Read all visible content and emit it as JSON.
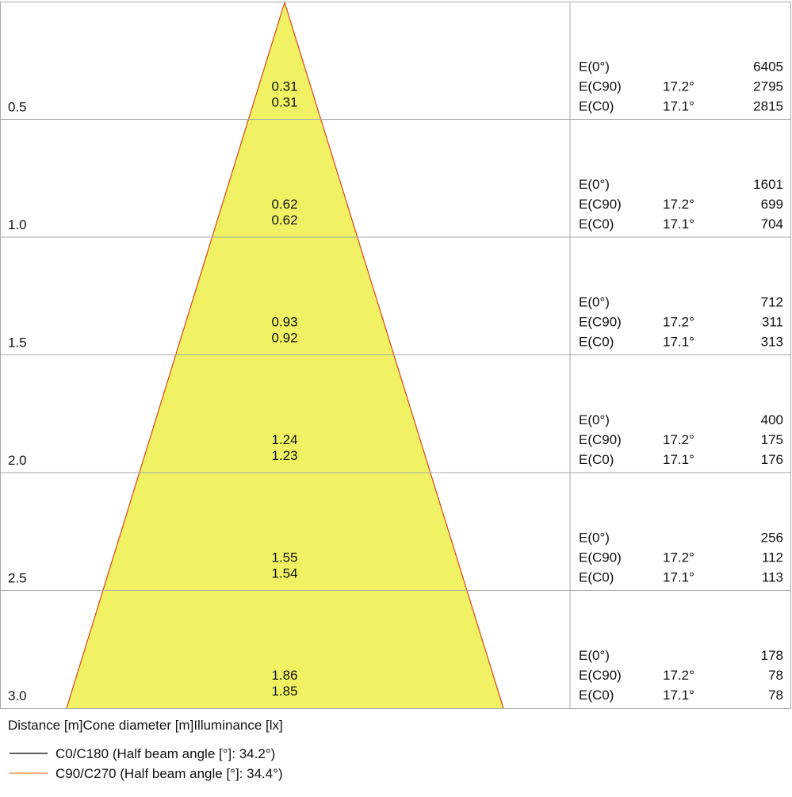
{
  "rows": [
    {
      "distance": "0.5",
      "diameter_c90": "0.31",
      "diameter_c0": "0.31",
      "e0": {
        "label": "E(0°)",
        "value": "6405"
      },
      "e_c90": {
        "label": "E(C90)",
        "angle": "17.2°",
        "value": "2795"
      },
      "e_c0": {
        "label": "E(C0)",
        "angle": "17.1°",
        "value": "2815"
      }
    },
    {
      "distance": "1.0",
      "diameter_c90": "0.62",
      "diameter_c0": "0.62",
      "e0": {
        "label": "E(0°)",
        "value": "1601"
      },
      "e_c90": {
        "label": "E(C90)",
        "angle": "17.2°",
        "value": "699"
      },
      "e_c0": {
        "label": "E(C0)",
        "angle": "17.1°",
        "value": "704"
      }
    },
    {
      "distance": "1.5",
      "diameter_c90": "0.93",
      "diameter_c0": "0.92",
      "e0": {
        "label": "E(0°)",
        "value": "712"
      },
      "e_c90": {
        "label": "E(C90)",
        "angle": "17.2°",
        "value": "311"
      },
      "e_c0": {
        "label": "E(C0)",
        "angle": "17.1°",
        "value": "313"
      }
    },
    {
      "distance": "2.0",
      "diameter_c90": "1.24",
      "diameter_c0": "1.23",
      "e0": {
        "label": "E(0°)",
        "value": "400"
      },
      "e_c90": {
        "label": "E(C90)",
        "angle": "17.2°",
        "value": "175"
      },
      "e_c0": {
        "label": "E(C0)",
        "angle": "17.1°",
        "value": "176"
      }
    },
    {
      "distance": "2.5",
      "diameter_c90": "1.55",
      "diameter_c0": "1.54",
      "e0": {
        "label": "E(0°)",
        "value": "256"
      },
      "e_c90": {
        "label": "E(C90)",
        "angle": "17.2°",
        "value": "112"
      },
      "e_c0": {
        "label": "E(C0)",
        "angle": "17.1°",
        "value": "113"
      }
    },
    {
      "distance": "3.0",
      "diameter_c90": "1.86",
      "diameter_c0": "1.85",
      "e0": {
        "label": "E(0°)",
        "value": "178"
      },
      "e_c90": {
        "label": "E(C90)",
        "angle": "17.2°",
        "value": "78"
      },
      "e_c0": {
        "label": "E(C0)",
        "angle": "17.1°",
        "value": "78"
      }
    }
  ],
  "column_headers": [
    "Distance [m]",
    "Cone diameter [m]",
    "Illuminance [lx]"
  ],
  "legend": [
    {
      "label": "C0/C180 (Half beam angle [°]: 34.2°)",
      "color": "#000000"
    },
    {
      "label": "C90/C270 (Half beam angle [°]: 34.4°)",
      "color": "#f07d1e"
    }
  ]
}
